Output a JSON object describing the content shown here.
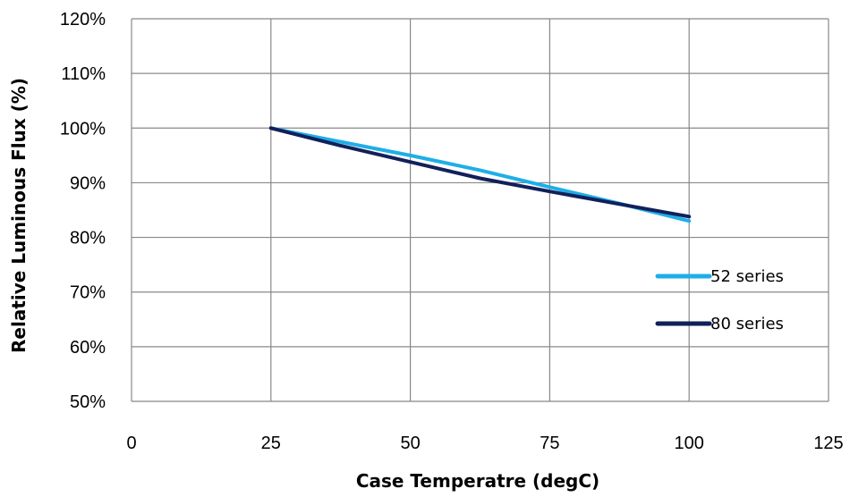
{
  "chart_data": {
    "type": "line",
    "title": "",
    "xlabel": "Case Temperatre (degC)",
    "ylabel": "Relative Luminous Flux (%)",
    "xlim": [
      0,
      125
    ],
    "ylim": [
      50,
      120
    ],
    "x_ticks": [
      0,
      25,
      50,
      75,
      100,
      125
    ],
    "y_ticks": [
      50,
      60,
      70,
      80,
      90,
      100,
      110,
      120
    ],
    "y_tick_labels": [
      "50%",
      "60%",
      "70%",
      "80%",
      "90%",
      "100%",
      "110%",
      "120%"
    ],
    "grid": true,
    "legend_position": "right",
    "series": [
      {
        "name": "52 series",
        "color": "#1EAEE8",
        "x": [
          25,
          50,
          62.5,
          75,
          87.5,
          100
        ],
        "y": [
          100,
          95,
          92.3,
          89.2,
          86.2,
          83
        ]
      },
      {
        "name": "80 series",
        "color": "#12205A",
        "x": [
          25,
          37.5,
          50,
          62.5,
          75,
          87.5,
          100
        ],
        "y": [
          100,
          96.8,
          93.8,
          90.8,
          88.4,
          86.1,
          83.8
        ]
      }
    ]
  }
}
